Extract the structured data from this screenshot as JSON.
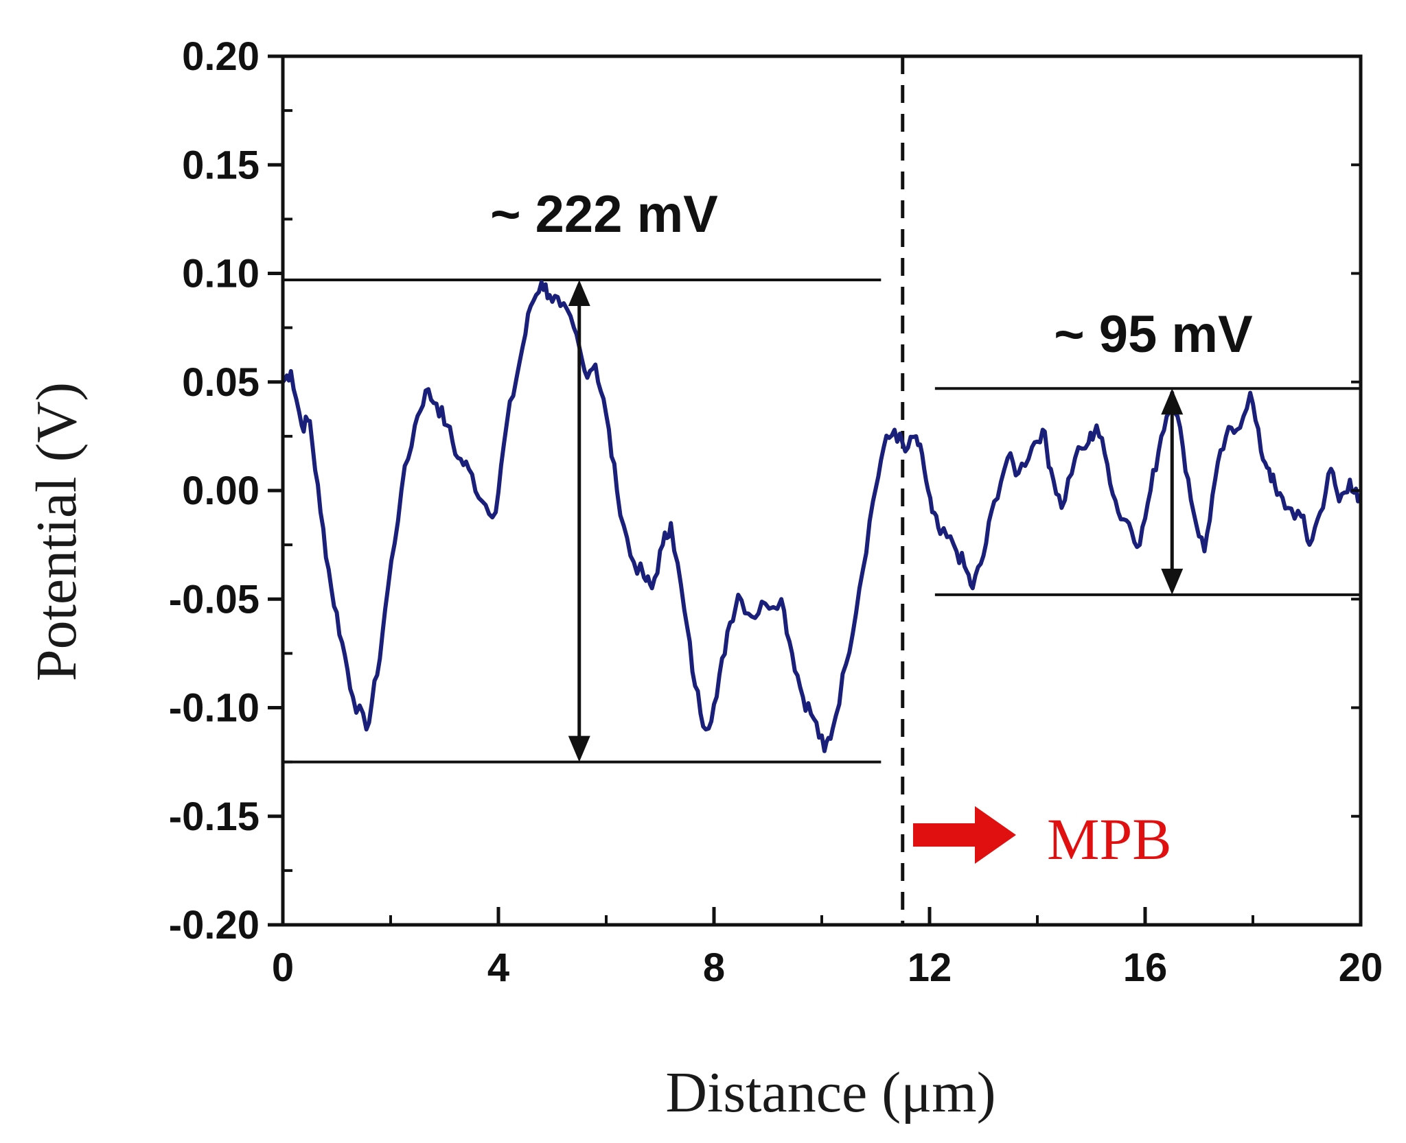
{
  "chart_data": {
    "type": "line",
    "title": "",
    "xlabel": "Distance (μm)",
    "ylabel": "Potential (V)",
    "xlim": [
      0,
      20
    ],
    "ylim": [
      -0.2,
      0.2
    ],
    "x_ticks": [
      0,
      4,
      8,
      12,
      16,
      20
    ],
    "x_tick_labels": [
      "0",
      "4",
      "8",
      "12",
      "16",
      "20"
    ],
    "y_ticks": [
      0.2,
      0.15,
      0.1,
      0.05,
      0.0,
      -0.05,
      -0.1,
      -0.15,
      -0.2
    ],
    "y_tick_labels": [
      "0.20",
      "0.15",
      "0.10",
      "0.05",
      "0.00",
      "-0.05",
      "-0.10",
      "-0.15",
      "-0.20"
    ],
    "grid": false,
    "series": [
      {
        "name": "Potential profile",
        "color": "#1a1f7a",
        "x": [
          0.0,
          0.15,
          0.35,
          0.5,
          0.7,
          0.9,
          1.1,
          1.3,
          1.55,
          1.75,
          1.95,
          2.2,
          2.45,
          2.65,
          2.85,
          3.05,
          3.25,
          3.45,
          3.7,
          3.95,
          4.15,
          4.4,
          4.6,
          4.8,
          4.95,
          5.15,
          5.4,
          5.6,
          5.8,
          6.0,
          6.2,
          6.45,
          6.7,
          6.85,
          7.05,
          7.2,
          7.45,
          7.65,
          7.85,
          8.05,
          8.25,
          8.45,
          8.7,
          8.95,
          9.25,
          9.45,
          9.65,
          9.85,
          10.05,
          10.2,
          10.45,
          10.7,
          10.95,
          11.15,
          11.35,
          11.55,
          11.75,
          11.9,
          12.05,
          12.2,
          12.45,
          12.65,
          12.8,
          13.0,
          13.2,
          13.45,
          13.65,
          13.9,
          14.1,
          14.25,
          14.45,
          14.7,
          14.95,
          15.1,
          15.3,
          15.5,
          15.7,
          15.9,
          16.1,
          16.3,
          16.5,
          16.7,
          16.9,
          17.1,
          17.3,
          17.5,
          17.7,
          17.95,
          18.15,
          18.3,
          18.45,
          18.65,
          18.9,
          19.05,
          19.25,
          19.45,
          19.6,
          19.8,
          19.95
        ],
        "y": [
          0.05,
          0.055,
          0.03,
          0.032,
          -0.01,
          -0.045,
          -0.07,
          -0.095,
          -0.11,
          -0.085,
          -0.045,
          0.0,
          0.03,
          0.046,
          0.04,
          0.03,
          0.015,
          0.01,
          -0.005,
          -0.01,
          0.03,
          0.06,
          0.085,
          0.096,
          0.09,
          0.085,
          0.075,
          0.055,
          0.058,
          0.035,
          0.0,
          -0.03,
          -0.04,
          -0.045,
          -0.025,
          -0.015,
          -0.055,
          -0.09,
          -0.11,
          -0.095,
          -0.065,
          -0.048,
          -0.058,
          -0.052,
          -0.05,
          -0.075,
          -0.095,
          -0.105,
          -0.12,
          -0.11,
          -0.08,
          -0.045,
          -0.005,
          0.02,
          0.028,
          0.018,
          0.025,
          0.01,
          -0.01,
          -0.02,
          -0.025,
          -0.035,
          -0.045,
          -0.03,
          -0.005,
          0.015,
          0.008,
          0.02,
          0.028,
          0.01,
          -0.008,
          0.015,
          0.022,
          0.03,
          0.012,
          -0.01,
          -0.015,
          -0.025,
          0.0,
          0.025,
          0.045,
          0.02,
          -0.01,
          -0.028,
          0.005,
          0.025,
          0.028,
          0.045,
          0.018,
          0.01,
          -0.002,
          -0.008,
          -0.012,
          -0.025,
          -0.01,
          0.01,
          -0.005,
          0.005,
          -0.005
        ]
      }
    ],
    "reference_lines": [
      {
        "name": "left-max",
        "y": 0.097,
        "x_range": [
          0,
          11.1
        ]
      },
      {
        "name": "left-min",
        "y": -0.125,
        "x_range": [
          0,
          11.1
        ]
      },
      {
        "name": "right-max",
        "y": 0.047,
        "x_range": [
          12.1,
          20
        ]
      },
      {
        "name": "right-min",
        "y": -0.048,
        "x_range": [
          12.1,
          20
        ]
      }
    ],
    "boundary_x": 11.5,
    "arrows": [
      {
        "name": "left-amplitude",
        "x": 5.5,
        "y_from": 0.097,
        "y_to": -0.125
      },
      {
        "name": "right-amplitude",
        "x": 16.5,
        "y_from": 0.047,
        "y_to": -0.048
      }
    ],
    "annotations": {
      "left_amplitude_label": "~ 222 mV",
      "right_amplitude_label": "~ 95 mV",
      "mpb_label": "MPB",
      "mpb_color": "#e01010"
    }
  }
}
